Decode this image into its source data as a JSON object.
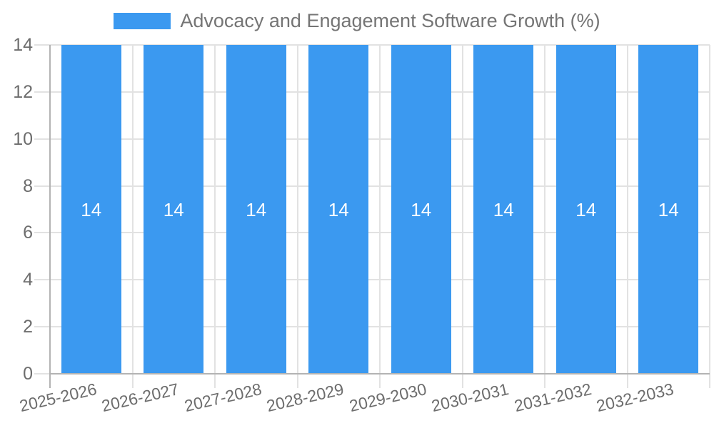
{
  "legend": {
    "label": "Advocacy and Engagement Software Growth (%)"
  },
  "chart_data": {
    "type": "bar",
    "categories": [
      "2025-2026",
      "2026-2027",
      "2027-2028",
      "2028-2029",
      "2029-2030",
      "2030-2031",
      "2031-2032",
      "2032-2033"
    ],
    "values": [
      14,
      14,
      14,
      14,
      14,
      14,
      14,
      14
    ],
    "value_labels": [
      "14",
      "14",
      "14",
      "14",
      "14",
      "14",
      "14",
      "14"
    ],
    "series_label": "Advocacy and Engagement Software Growth (%)",
    "title": "",
    "xlabel": "",
    "ylabel": "",
    "ylim": [
      0,
      14
    ],
    "yticks": [
      0,
      2,
      4,
      6,
      8,
      10,
      12,
      14
    ],
    "grid": true,
    "legend_position": "top",
    "x_tick_rotation_deg": -13
  },
  "colors": {
    "bar": "#3b99f0",
    "grid": "#e2e2e2",
    "axis": "#b3b3b3",
    "tick_text": "#6d6d6d",
    "legend_text": "#757575",
    "value_label": "#ffffff",
    "background": "#ffffff"
  }
}
